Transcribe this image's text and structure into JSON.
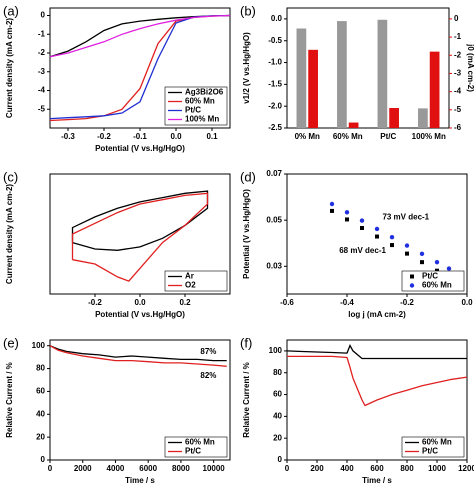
{
  "chart_data": [
    {
      "type": "line",
      "label": "(a)",
      "xlabel": "Potential (V vs.Hg/HgO)",
      "ylabel": "Current density (mA cm-2)",
      "x": [
        -0.35,
        -0.3,
        -0.25,
        -0.2,
        -0.15,
        -0.1,
        -0.05,
        0,
        0.05,
        0.1,
        0.15
      ],
      "series": [
        {
          "name": "Ag3Bi2O6",
          "color": "#000000",
          "values": [
            -2.2,
            -1.9,
            -1.4,
            -0.8,
            -0.45,
            -0.3,
            -0.2,
            -0.12,
            -0.06,
            -0.02,
            0
          ]
        },
        {
          "name": "60% Mn",
          "color": "#e02020",
          "values": [
            -5.6,
            -5.55,
            -5.5,
            -5.35,
            -5.0,
            -3.9,
            -1.5,
            -0.3,
            -0.1,
            -0.03,
            0
          ]
        },
        {
          "name": "Pt/C",
          "color": "#2030d0",
          "values": [
            -5.5,
            -5.45,
            -5.4,
            -5.35,
            -5.2,
            -4.6,
            -2.3,
            -0.4,
            -0.08,
            -0.02,
            0
          ]
        },
        {
          "name": "100% Mn",
          "color": "#e020e0",
          "values": [
            -2.2,
            -2.0,
            -1.7,
            -1.4,
            -1.0,
            -0.7,
            -0.45,
            -0.25,
            -0.1,
            -0.03,
            0
          ]
        }
      ],
      "xlim": [
        -0.35,
        0.15
      ],
      "xticks": [
        -0.3,
        -0.2,
        -0.1,
        {
          "value": 0,
          "label": "0.0"
        },
        0.1
      ],
      "ylim": [
        -6,
        0.4
      ],
      "yticks": [
        -5,
        -4,
        -3,
        -2,
        -1,
        0
      ],
      "legend": "lower right"
    },
    {
      "type": "bar",
      "label": "(b)",
      "ylabel": "v1/2 (V vs.Hg/HgO)",
      "y2label": "j0 (mA cm-2)",
      "categories": [
        "0% Mn",
        "60% Mn",
        "Pt/C",
        "100% Mn"
      ],
      "series": [
        {
          "color": "#999999",
          "values": [
            -0.22,
            -0.05,
            -0.02,
            -2.05
          ]
        },
        {
          "color": "#e01010",
          "axis": "y2",
          "values": [
            -1.7,
            -5.7,
            -4.9,
            -1.8
          ]
        }
      ],
      "ylim": [
        -2.5,
        0.25
      ],
      "yticks": [
        {
          "value": 0,
          "label": "0.0"
        },
        -0.5,
        {
          "value": -1,
          "label": "-1.0"
        },
        -1.5,
        {
          "value": -2,
          "label": "-2.0"
        },
        -2.5
      ],
      "y2lim": [
        -6,
        0.6
      ],
      "y2ticks": [
        0,
        -1,
        -2,
        -3,
        -4,
        -5,
        -6
      ],
      "y2color": "#e01010"
    },
    {
      "type": "line",
      "label": "(c)",
      "xlabel": "Potential (V vs.Hg/HgO)",
      "ylabel": "Current density (mA cm-2)",
      "series": [
        {
          "name": "Ar",
          "color": "#000000",
          "x": [
            -0.3,
            -0.2,
            -0.1,
            0,
            0.1,
            0.2,
            0.3,
            0.3,
            0.2,
            0.1,
            0,
            -0.1,
            -0.2,
            -0.3,
            -0.3
          ],
          "values": [
            -0.6,
            -0.75,
            -0.78,
            -0.7,
            -0.5,
            -0.2,
            0.2,
            0.6,
            0.55,
            0.45,
            0.35,
            0.2,
            0,
            -0.25,
            -0.6
          ]
        },
        {
          "name": "O2",
          "color": "#e02020",
          "x": [
            -0.3,
            -0.2,
            -0.1,
            -0.05,
            0,
            0.1,
            0.2,
            0.3,
            0.3,
            0.2,
            0.1,
            0,
            -0.1,
            -0.2,
            -0.3,
            -0.3
          ],
          "values": [
            -1.0,
            -1.1,
            -1.4,
            -1.5,
            -1.2,
            -0.6,
            -0.2,
            0.3,
            0.55,
            0.5,
            0.4,
            0.3,
            0.1,
            -0.15,
            -0.4,
            -1.0
          ]
        }
      ],
      "xlim": [
        -0.4,
        0.4
      ],
      "xticks": [
        -0.2,
        {
          "value": 0,
          "label": "0.0"
        },
        0.2
      ],
      "ylim": [
        -1.8,
        1.0
      ],
      "yticks": [],
      "legend": "lower right"
    },
    {
      "type": "scatter",
      "label": "(d)",
      "xlabel": "log j (mA cm-2)",
      "ylabel": "Potential (V vs.Hg/HgO)",
      "x": [
        -0.45,
        -0.4,
        -0.35,
        -0.3,
        -0.25,
        -0.2,
        -0.15,
        -0.1,
        -0.06
      ],
      "series": [
        {
          "name": "Pt/C",
          "color": "#000000",
          "marker": "square",
          "values": [
            0.054,
            0.0503,
            0.0466,
            0.0429,
            0.0392,
            0.0355,
            0.0318,
            0.0281,
            0.0251
          ]
        },
        {
          "name": "60% Mn",
          "color": "#2030e0",
          "marker": "circle",
          "values": [
            0.057,
            0.0534,
            0.0498,
            0.0462,
            0.0426,
            0.039,
            0.0354,
            0.0318,
            0.029
          ]
        }
      ],
      "xlim": [
        -0.6,
        0.0
      ],
      "xticks": [
        -0.6,
        -0.4,
        -0.2,
        {
          "value": 0,
          "label": "0.0"
        }
      ],
      "ylim": [
        0.018,
        0.07
      ],
      "yticks": [
        0.03,
        0.05,
        0.07
      ],
      "annotations": [
        "73 mV dec-1",
        "68 mV dec-1"
      ],
      "legend": "lower right"
    },
    {
      "type": "line",
      "label": "(e)",
      "xlabel": "Time / s",
      "ylabel": "Relative Current / %",
      "x": [
        0,
        500,
        1000,
        2000,
        3000,
        4000,
        5000,
        6000,
        7000,
        8000,
        9000,
        10000,
        10800
      ],
      "series": [
        {
          "name": "60% Mn",
          "color": "#000000",
          "values": [
            100,
            97,
            95,
            93,
            92,
            90,
            91,
            90,
            89,
            88,
            88,
            87,
            87
          ]
        },
        {
          "name": "Pt/C",
          "color": "#e02020",
          "values": [
            100,
            96,
            94,
            91,
            89,
            87,
            87,
            86,
            85,
            85,
            84,
            83,
            82
          ]
        }
      ],
      "xlim": [
        0,
        11000
      ],
      "xticks": [
        0,
        2000,
        4000,
        6000,
        8000,
        10000
      ],
      "ylim": [
        0,
        105
      ],
      "yticks": [
        0,
        20,
        40,
        60,
        80,
        100
      ],
      "annotations": [
        "87%",
        "82%"
      ],
      "legend": "lower right"
    },
    {
      "type": "line",
      "label": "(f)",
      "xlabel": "Time / s",
      "ylabel": "Relative Current / %",
      "x": [
        0,
        100,
        200,
        300,
        400,
        420,
        440,
        500,
        520,
        600,
        700,
        800,
        900,
        1000,
        1100,
        1200
      ],
      "series": [
        {
          "name": "60% Mn",
          "color": "#000000",
          "values": [
            100,
            99.5,
            99,
            98.5,
            98,
            105,
            100,
            93,
            93,
            93,
            93,
            93,
            93,
            93,
            93,
            93
          ]
        },
        {
          "name": "Pt/C",
          "color": "#e02020",
          "values": [
            95,
            95,
            95,
            95,
            94,
            85,
            75,
            55,
            50,
            55,
            60,
            64,
            68,
            71,
            74,
            76
          ]
        }
      ],
      "xlim": [
        0,
        1200
      ],
      "xticks": [
        0,
        200,
        400,
        600,
        800,
        1000,
        1200
      ],
      "ylim": [
        0,
        110
      ],
      "yticks": [
        0,
        20,
        40,
        60,
        80,
        100
      ],
      "legend": "lower right"
    }
  ]
}
